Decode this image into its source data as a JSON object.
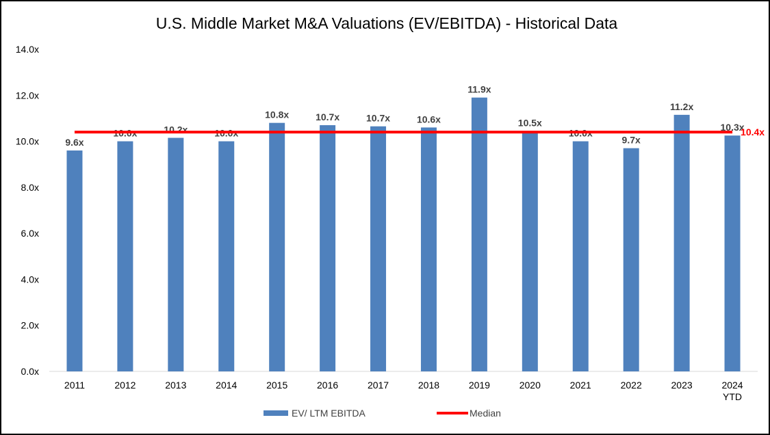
{
  "chart_data": {
    "type": "bar",
    "title": "U.S. Middle Market M&A Valuations (EV/EBITDA) - Historical Data",
    "categories": [
      [
        "2011"
      ],
      [
        "2012"
      ],
      [
        "2013"
      ],
      [
        "2014"
      ],
      [
        "2015"
      ],
      [
        "2016"
      ],
      [
        "2017"
      ],
      [
        "2018"
      ],
      [
        "2019"
      ],
      [
        "2020"
      ],
      [
        "2021"
      ],
      [
        "2022"
      ],
      [
        "2023"
      ],
      [
        "2024",
        "YTD"
      ]
    ],
    "series": [
      {
        "name": "EV/ LTM EBITDA",
        "kind": "bar",
        "color": "#4f81bd",
        "values": [
          9.6,
          10.0,
          10.15,
          10.0,
          10.8,
          10.7,
          10.65,
          10.6,
          11.9,
          10.45,
          10.0,
          9.7,
          11.15,
          10.25
        ],
        "labels": [
          "9.6x",
          "10.0x",
          "10.2x",
          "10.0x",
          "10.8x",
          "10.7x",
          "10.7x",
          "10.6x",
          "11.9x",
          "10.5x",
          "10.0x",
          "9.7x",
          "11.2x",
          "10.3x"
        ]
      },
      {
        "name": "Median",
        "kind": "line",
        "color": "#ff0000",
        "value": 10.4,
        "label": "10.4x"
      }
    ],
    "ylim": [
      0,
      14
    ],
    "yticks": [
      0,
      2,
      4,
      6,
      8,
      10,
      12,
      14
    ],
    "yticklabels": [
      "0.0x",
      "2.0x",
      "4.0x",
      "6.0x",
      "8.0x",
      "10.0x",
      "12.0x",
      "14.0x"
    ],
    "grid": false,
    "legend_position": "bottom"
  }
}
